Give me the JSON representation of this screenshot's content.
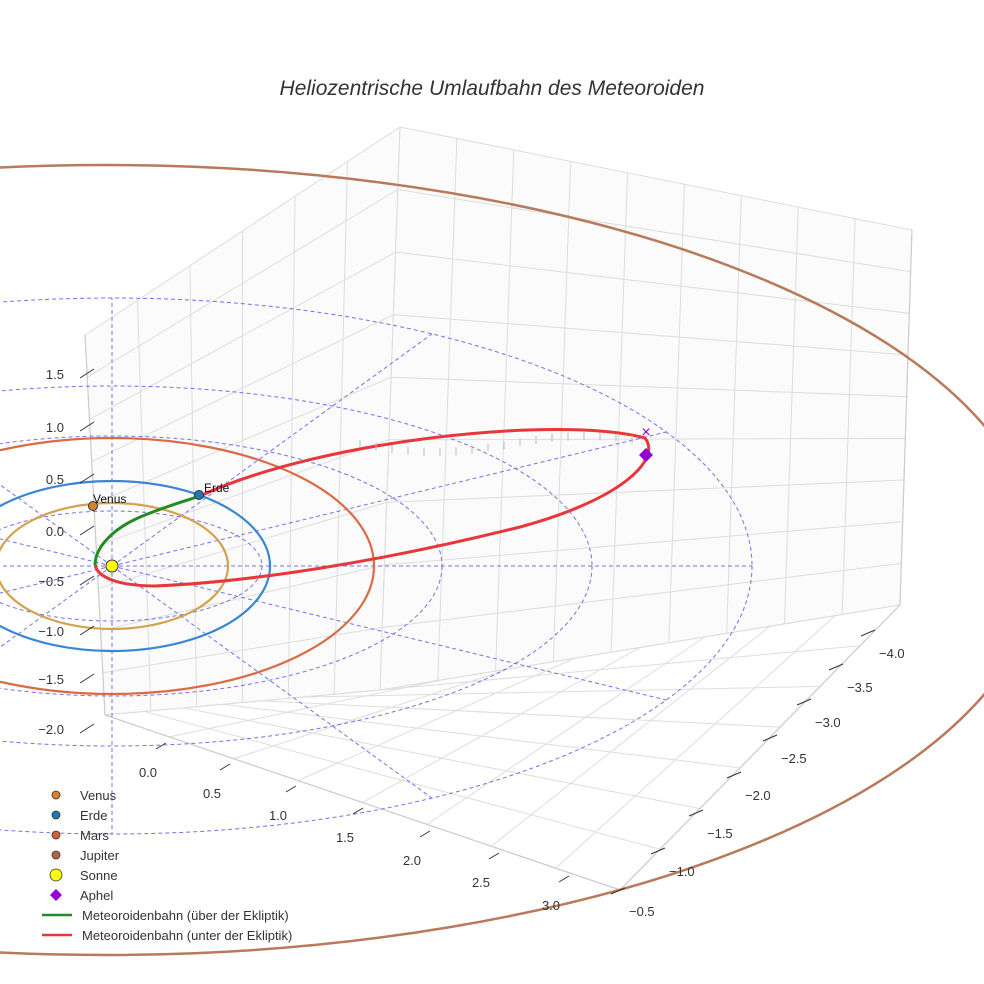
{
  "chart_data": {
    "type": "3d-line",
    "title": "Heliozentrische Umlaufbahn des Meteoroiden",
    "axes": {
      "x": {
        "ticks": [
          "0.0",
          "0.5",
          "1.0",
          "1.5",
          "2.0",
          "2.5",
          "3.0"
        ],
        "range": [
          -0.2,
          3.3
        ]
      },
      "y": {
        "ticks": [
          "−4.0",
          "−3.5",
          "−3.0",
          "−2.5",
          "−2.0",
          "−1.5",
          "−1.0",
          "−0.5"
        ],
        "range": [
          -4.2,
          -0.3
        ]
      },
      "z": {
        "ticks": [
          "1.5",
          "1.0",
          "0.5",
          "0.0",
          "−0.5",
          "−1.0",
          "−1.5",
          "−2.0"
        ],
        "range": [
          -2.2,
          1.8
        ]
      }
    },
    "bodies": [
      {
        "name": "Venus",
        "label": "Venus",
        "color": "#d9822b",
        "orbit_color": "#d4a24c",
        "orbit_radius_au": 0.72
      },
      {
        "name": "Erde",
        "label": "Erde",
        "color": "#1f77b4",
        "orbit_color": "#3a86d4",
        "orbit_radius_au": 1.0
      },
      {
        "name": "Mars",
        "label": "",
        "color": "#d4603a",
        "orbit_color": "#db6b45",
        "orbit_radius_au": 1.52
      },
      {
        "name": "Jupiter",
        "label": "",
        "color": "#b5653a",
        "orbit_color": "#b87a5a",
        "orbit_radius_au": 5.2
      },
      {
        "name": "Sonne",
        "label": "",
        "color": "#ffff00"
      }
    ],
    "meteoroid_orbit": {
      "perihelion_au": 0.5,
      "aphelion_au": 3.9,
      "segments": [
        {
          "name": "Meteoroidenbahn (über der Ekliptik)",
          "color": "#228b22"
        },
        {
          "name": "Meteoroidenbahn (unter der Ekliptik)",
          "color": "#e8373a"
        }
      ]
    },
    "aphel": {
      "name": "Aphel",
      "color": "#9400d3"
    },
    "legend": {
      "position": "bottom-left",
      "entries": [
        {
          "label": "Venus",
          "marker": "circle",
          "color": "#d9822b"
        },
        {
          "label": "Erde",
          "marker": "circle",
          "color": "#1f77b4"
        },
        {
          "label": "Mars",
          "marker": "circle",
          "color": "#d4603a"
        },
        {
          "label": "Jupiter",
          "marker": "circle",
          "color": "#b5653a"
        },
        {
          "label": "Sonne",
          "marker": "big-circle",
          "color": "#ffff00"
        },
        {
          "label": "Aphel",
          "marker": "diamond",
          "color": "#9400d3"
        },
        {
          "label": "Meteoroidenbahn (über der Ekliptik)",
          "marker": "line",
          "color": "#228b22"
        },
        {
          "label": "Meteoroidenbahn (unter der Ekliptik)",
          "marker": "line",
          "color": "#e8373a"
        }
      ]
    },
    "grid": true,
    "ecliptic_grid_color": "#5a5ae6"
  }
}
